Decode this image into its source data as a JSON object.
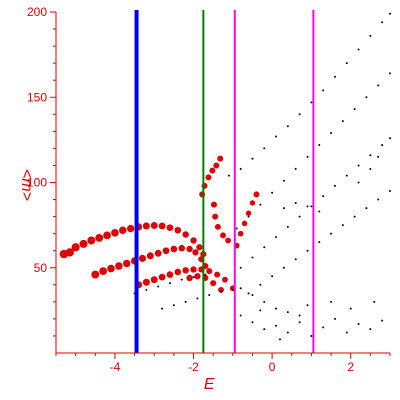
{
  "chart_data": {
    "type": "scatter",
    "title": "",
    "xlabel": "E",
    "ylabel": "<m>",
    "xlim": [
      -5.5,
      3.0
    ],
    "ylim": [
      0,
      200
    ],
    "xticks": [
      "-4",
      "-2",
      "0",
      "2"
    ],
    "xtick_values": [
      -4,
      -2,
      0,
      2
    ],
    "yticks": [
      "50",
      "100",
      "150",
      "200"
    ],
    "ytick_values": [
      50,
      100,
      150,
      200
    ],
    "grid": false,
    "colors": {
      "axes": "#e00000",
      "ticks": "#e00000",
      "red_points": "#e00000",
      "black_points": "#000000"
    },
    "vertical_lines": [
      {
        "x": -3.45,
        "color": "#0000ee"
      },
      {
        "x": -1.75,
        "color": "#008000"
      },
      {
        "x": -0.95,
        "color": "#ff00ff"
      },
      {
        "x": 1.05,
        "color": "#ff00ff"
      }
    ],
    "series": [
      {
        "color": "#e00000",
        "points": [
          [
            -5.3,
            58
          ],
          [
            -5.15,
            59
          ],
          [
            -5.0,
            62
          ],
          [
            -4.8,
            64
          ],
          [
            -4.6,
            66
          ],
          [
            -4.4,
            67.5
          ],
          [
            -4.2,
            69
          ],
          [
            -4.0,
            70.5
          ],
          [
            -3.8,
            72
          ],
          [
            -3.6,
            73
          ],
          [
            -3.4,
            74
          ],
          [
            -3.2,
            74.5
          ],
          [
            -3.0,
            74.8
          ],
          [
            -2.8,
            74.5
          ],
          [
            -2.6,
            73.5
          ],
          [
            -2.4,
            72
          ],
          [
            -2.2,
            69.5
          ],
          [
            -2.0,
            66
          ],
          [
            -1.85,
            62
          ],
          [
            -1.75,
            58
          ],
          [
            -4.5,
            46
          ],
          [
            -4.3,
            48
          ],
          [
            -4.1,
            49.5
          ],
          [
            -3.9,
            51
          ],
          [
            -3.7,
            52.5
          ],
          [
            -3.5,
            54
          ],
          [
            -3.3,
            55.5
          ],
          [
            -3.1,
            57
          ],
          [
            -2.9,
            58.5
          ],
          [
            -2.7,
            60
          ],
          [
            -2.5,
            61
          ],
          [
            -2.3,
            61.5
          ],
          [
            -2.1,
            61
          ],
          [
            -1.95,
            59
          ],
          [
            -1.8,
            55
          ],
          [
            -1.7,
            51
          ],
          [
            -3.4,
            40
          ],
          [
            -3.2,
            41.5
          ],
          [
            -3.0,
            43
          ],
          [
            -2.8,
            44.5
          ],
          [
            -2.6,
            46
          ],
          [
            -2.4,
            47.5
          ],
          [
            -2.2,
            48.5
          ],
          [
            -2.0,
            49
          ],
          [
            -1.8,
            49
          ],
          [
            -1.6,
            48
          ],
          [
            -1.4,
            46
          ],
          [
            -1.2,
            43
          ],
          [
            -1.0,
            38
          ],
          [
            -2.1,
            44
          ],
          [
            -1.9,
            45
          ],
          [
            -1.7,
            44
          ],
          [
            -1.5,
            41
          ],
          [
            -1.3,
            37
          ],
          [
            -1.78,
            93
          ],
          [
            -1.72,
            98
          ],
          [
            -1.62,
            103
          ],
          [
            -1.52,
            107
          ],
          [
            -1.42,
            110
          ],
          [
            -1.32,
            114
          ],
          [
            -1.48,
            87
          ],
          [
            -1.45,
            80
          ],
          [
            -1.38,
            74
          ],
          [
            -1.25,
            69
          ],
          [
            -1.12,
            66
          ],
          [
            -0.9,
            63
          ],
          [
            -0.8,
            70
          ],
          [
            -0.7,
            76
          ],
          [
            -0.6,
            82
          ],
          [
            -0.5,
            88
          ],
          [
            -0.4,
            93
          ]
        ]
      },
      {
        "color": "#000000",
        "points": [
          [
            -1.1,
            104
          ],
          [
            -0.8,
            108
          ],
          [
            -0.5,
            114
          ],
          [
            -0.2,
            120
          ],
          [
            0.1,
            127
          ],
          [
            0.4,
            133
          ],
          [
            0.7,
            140
          ],
          [
            1.0,
            147
          ],
          [
            1.3,
            154
          ],
          [
            1.6,
            162
          ],
          [
            1.9,
            170
          ],
          [
            2.2,
            178
          ],
          [
            2.5,
            186
          ],
          [
            2.8,
            194
          ],
          [
            3.0,
            199
          ],
          [
            -0.9,
            73
          ],
          [
            -0.6,
            80
          ],
          [
            -0.3,
            87
          ],
          [
            0.0,
            94
          ],
          [
            0.3,
            101
          ],
          [
            0.6,
            108
          ],
          [
            0.9,
            115
          ],
          [
            1.2,
            122
          ],
          [
            1.5,
            129
          ],
          [
            1.8,
            136
          ],
          [
            2.1,
            143
          ],
          [
            2.4,
            150
          ],
          [
            2.7,
            157
          ],
          [
            3.0,
            164
          ],
          [
            -0.8,
            50
          ],
          [
            -0.5,
            56
          ],
          [
            -0.2,
            62
          ],
          [
            0.1,
            68
          ],
          [
            0.4,
            74
          ],
          [
            0.7,
            80
          ],
          [
            1.0,
            86
          ],
          [
            1.3,
            92
          ],
          [
            1.6,
            98
          ],
          [
            1.9,
            104
          ],
          [
            2.2,
            110
          ],
          [
            2.5,
            116
          ],
          [
            2.8,
            122
          ],
          [
            3.0,
            126
          ],
          [
            -0.6,
            35
          ],
          [
            -0.3,
            40
          ],
          [
            0.0,
            45
          ],
          [
            0.3,
            50
          ],
          [
            0.6,
            55
          ],
          [
            0.9,
            60
          ],
          [
            1.2,
            65
          ],
          [
            1.5,
            70
          ],
          [
            1.8,
            75
          ],
          [
            2.1,
            80
          ],
          [
            2.4,
            85
          ],
          [
            2.7,
            90
          ],
          [
            3.0,
            95
          ],
          [
            -3.5,
            35
          ],
          [
            -3.2,
            37
          ],
          [
            -2.9,
            39
          ],
          [
            -2.6,
            41
          ],
          [
            -2.3,
            43
          ],
          [
            -2.0,
            44.5
          ],
          [
            -1.7,
            46
          ],
          [
            -2.8,
            26
          ],
          [
            -2.5,
            28
          ],
          [
            -2.2,
            30
          ],
          [
            -1.9,
            32
          ],
          [
            -1.6,
            34
          ],
          [
            -1.3,
            36
          ],
          [
            -1.0,
            37
          ],
          [
            -0.8,
            38
          ],
          [
            -0.5,
            34
          ],
          [
            -0.2,
            30
          ],
          [
            0.1,
            26
          ],
          [
            0.4,
            24
          ],
          [
            0.7,
            22
          ],
          [
            0.3,
            85
          ],
          [
            0.6,
            88
          ],
          [
            0.9,
            86
          ],
          [
            1.2,
            83
          ],
          [
            2.2,
            100
          ],
          [
            2.5,
            108
          ],
          [
            2.7,
            115
          ],
          [
            -0.8,
            22
          ],
          [
            -0.5,
            18
          ],
          [
            -0.2,
            14
          ],
          [
            0.1,
            16
          ],
          [
            0.4,
            12
          ],
          [
            0.7,
            18
          ],
          [
            1.0,
            10
          ],
          [
            1.3,
            15
          ],
          [
            1.6,
            20
          ],
          [
            1.9,
            12
          ],
          [
            2.2,
            17
          ],
          [
            2.5,
            14
          ],
          [
            2.8,
            19
          ],
          [
            -0.3,
            25
          ],
          [
            0.2,
            8
          ],
          [
            0.9,
            28
          ],
          [
            1.5,
            30
          ],
          [
            2.0,
            26
          ],
          [
            2.6,
            30
          ]
        ]
      }
    ]
  }
}
